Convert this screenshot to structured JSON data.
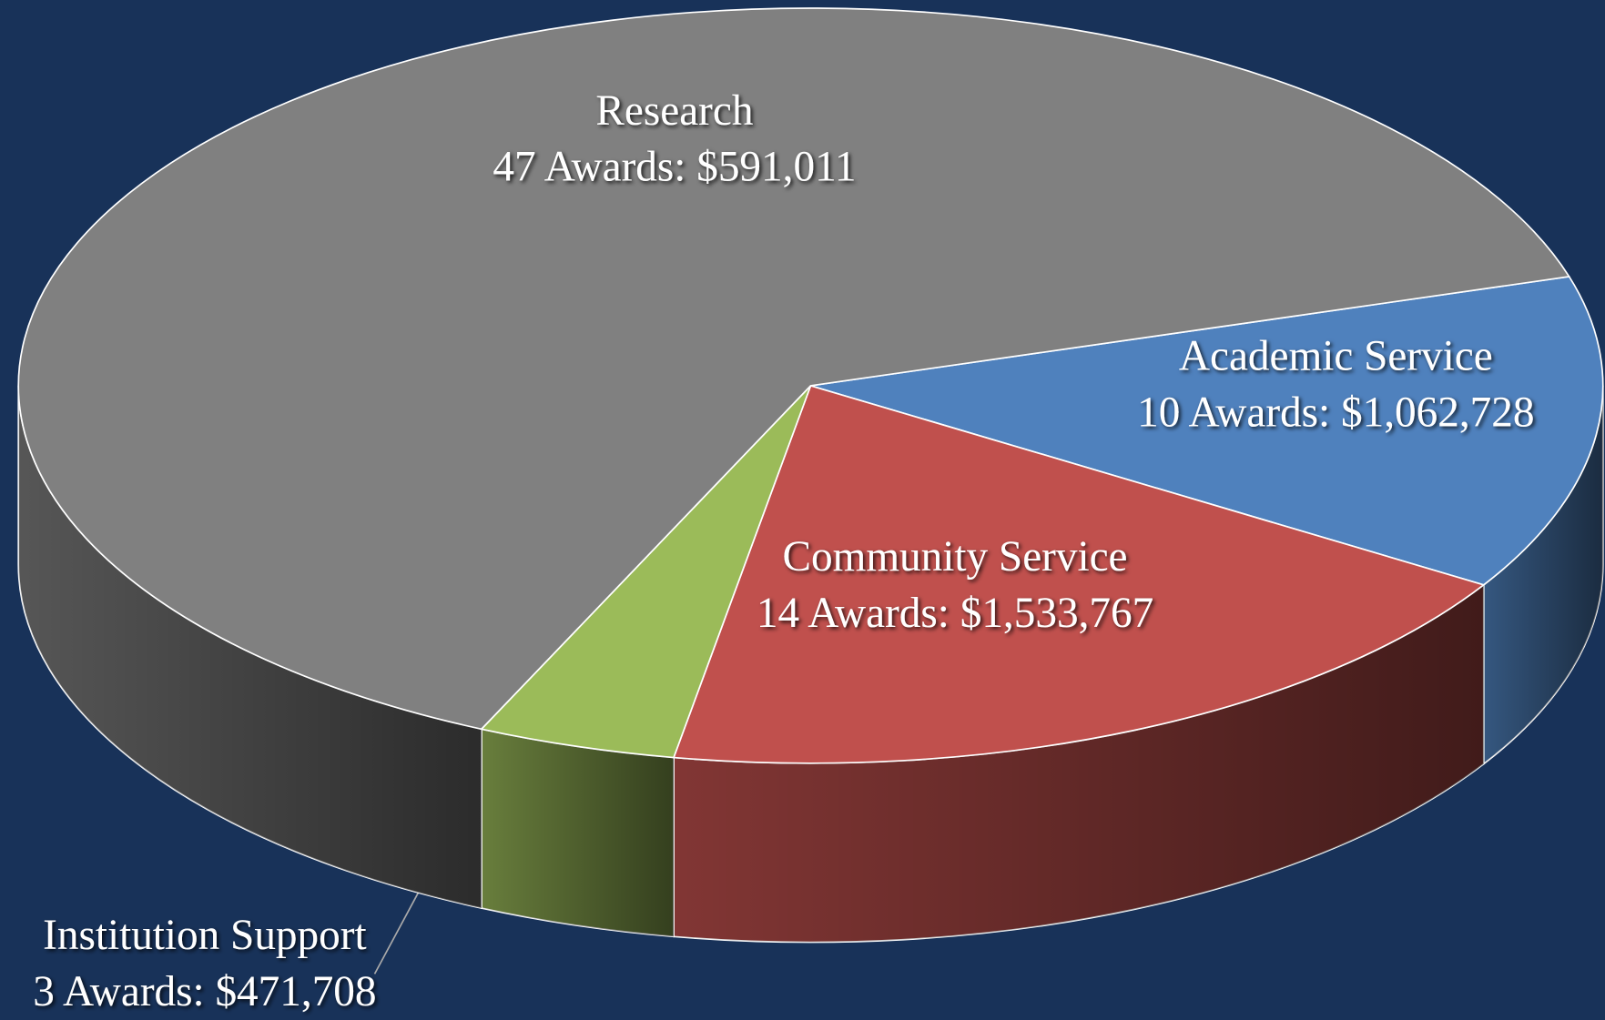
{
  "chart_data": {
    "type": "pie",
    "categories": [
      "Academic Service",
      "Community Service",
      "Institution Support",
      "Research"
    ],
    "values": [
      10,
      14,
      3,
      47
    ],
    "value_labels": [
      "10 Awards:  $1,062,728",
      "14 Awards:  $1,533,767",
      "3 Awards:  $471,708",
      "47 Awards:  $591,011"
    ],
    "colors": [
      "#4f81bd",
      "#c0504d",
      "#9bbb59",
      "#808080"
    ]
  }
}
